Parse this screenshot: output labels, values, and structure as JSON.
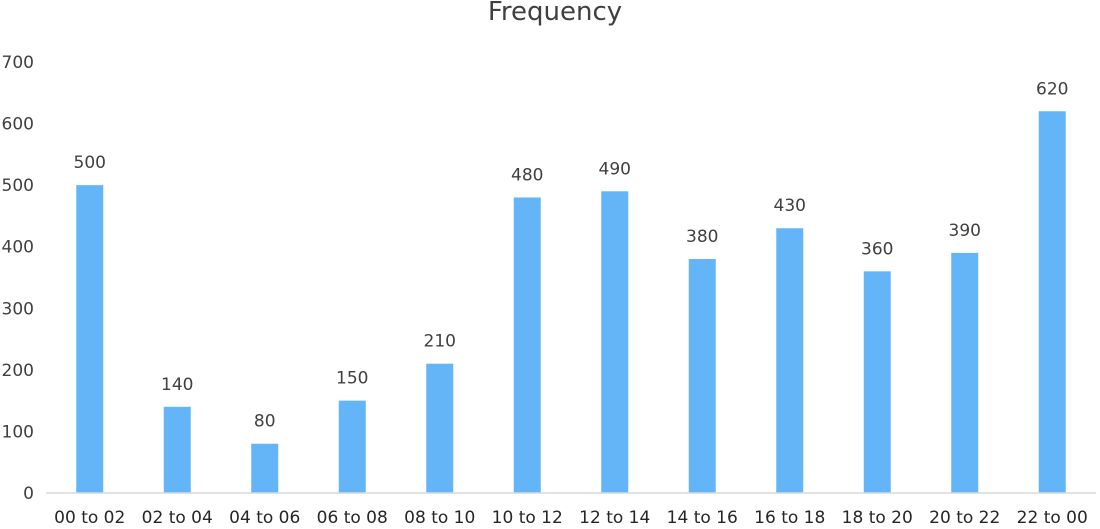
{
  "chart_data": {
    "type": "bar",
    "title": "Frequency",
    "xlabel": "",
    "ylabel": "",
    "ylim": [
      0,
      700
    ],
    "yticks": [
      "0",
      "100",
      "200",
      "300",
      "400",
      "500",
      "600",
      "700"
    ],
    "grid": false,
    "legend": "none",
    "categories": [
      "00 to 02",
      "02 to 04",
      "04 to 06",
      "06 to 08",
      "08 to 10",
      "10 to 12",
      "12 to 14",
      "14 to 16",
      "16 to 18",
      "18 to 20",
      "20 to 22",
      "22 to 00"
    ],
    "values": [
      500,
      140,
      80,
      150,
      210,
      480,
      490,
      380,
      430,
      360,
      390,
      620
    ],
    "colors": {
      "bar": "#63b5f7"
    }
  }
}
